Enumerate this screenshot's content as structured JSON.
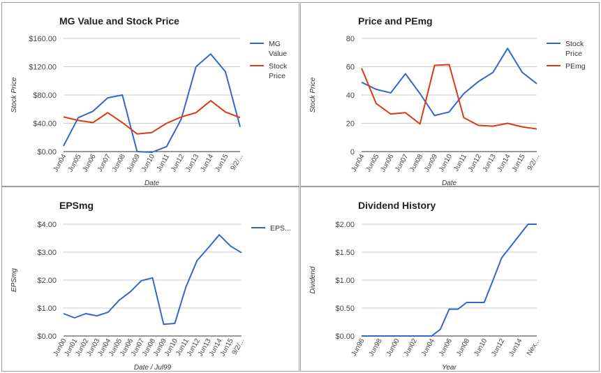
{
  "chart_data": [
    {
      "type": "line",
      "title": "MG Value and Stock Price",
      "xlabel": "Date",
      "ylabel": "Stock Price",
      "ylim": [
        0,
        160
      ],
      "yticks": [
        "$0.00",
        "$40.00",
        "$80.00",
        "$120.00",
        "$160.00"
      ],
      "categories": [
        "Jun04",
        "Jun05",
        "Jun06",
        "Jun07",
        "Jun08",
        "Jun09",
        "Jun10",
        "Jun11",
        "Jun12",
        "Jun13",
        "Jun14",
        "Jun15",
        "9/2/..."
      ],
      "grid": true,
      "legend": "right",
      "series": [
        {
          "name": "MG Value",
          "color": "#3366cc",
          "values": [
            8,
            48,
            57,
            76,
            80,
            0,
            -1,
            7,
            46,
            120,
            138,
            113,
            35
          ]
        },
        {
          "name": "Stock Price",
          "color": "#dc3912",
          "values": [
            49,
            44,
            41,
            55,
            41,
            25,
            27,
            40,
            49,
            55,
            72,
            56,
            48
          ]
        }
      ]
    },
    {
      "type": "line",
      "title": "Price and PEmg",
      "xlabel": "Date",
      "ylabel": "Stock Price",
      "ylim": [
        0,
        80
      ],
      "yticks": [
        "0",
        "20",
        "40",
        "60",
        "80"
      ],
      "categories": [
        "Jun04",
        "Jun05",
        "Jun06",
        "Jun07",
        "Jun08",
        "Jun09",
        "Jun10",
        "Jun11",
        "Jun12",
        "Jun13",
        "Jun14",
        "Jun15",
        "9/2/..."
      ],
      "grid": true,
      "legend": "right",
      "series": [
        {
          "name": "Stock Price",
          "color": "#3366cc",
          "values": [
            49,
            44,
            41.5,
            55,
            41,
            25.5,
            28,
            41,
            49.5,
            56,
            73,
            56,
            48
          ]
        },
        {
          "name": "PEmg",
          "color": "#dc3912",
          "values": [
            59,
            34,
            26.5,
            27.5,
            19.5,
            61,
            61.5,
            24,
            18.5,
            18,
            20,
            17.5,
            16
          ]
        }
      ]
    },
    {
      "type": "line",
      "title": "EPSmg",
      "xlabel": "Date / Jul99",
      "ylabel": "EPSmg",
      "ylim": [
        0,
        4
      ],
      "yticks": [
        "$0.00",
        "$1.00",
        "$2.00",
        "$3.00",
        "$4.00"
      ],
      "categories": [
        "Jun00",
        "Jun01",
        "Jun02",
        "Jun03",
        "Jun04",
        "Jun05",
        "Jun06",
        "Jun07",
        "Jun08",
        "Jun09",
        "Jun10",
        "Jun11",
        "Jun12",
        "Jun13",
        "Jun14",
        "Jun15",
        "9/2/..."
      ],
      "grid": true,
      "legend": "right",
      "series": [
        {
          "name": "EPS...",
          "color": "#3366cc",
          "values": [
            0.8,
            0.65,
            0.8,
            0.72,
            0.85,
            1.28,
            1.58,
            1.98,
            2.08,
            0.42,
            0.45,
            1.75,
            2.7,
            3.15,
            3.62,
            3.22,
            2.98
          ]
        }
      ]
    },
    {
      "type": "line",
      "title": "Dividend History",
      "xlabel": "Year",
      "ylabel": "Dividend",
      "ylim": [
        0,
        2
      ],
      "yticks": [
        "$0.00",
        "$0.50",
        "$1.00",
        "$1.50",
        "$2.00"
      ],
      "categories": [
        "Jun96",
        "Jun97",
        "Jun98",
        "Jun99",
        "Jun00",
        "Jun01",
        "Jun02",
        "Jun03",
        "Jun04",
        "Jun05",
        "Jun06",
        "Jun07",
        "Jun08",
        "Jun09",
        "Jun10",
        "Jun11",
        "Jun12",
        "Jun13",
        "Jun14",
        "Jun15",
        "Nex..."
      ],
      "tick_every": 2,
      "grid": true,
      "legend": "none",
      "series": [
        {
          "name": "",
          "color": "#3366cc",
          "values": [
            0,
            0,
            0,
            0,
            0,
            0,
            0,
            0,
            0,
            0.12,
            0.48,
            0.48,
            0.6,
            0.6,
            0.6,
            1.0,
            1.4,
            1.6,
            1.8,
            2.0,
            2.0
          ]
        }
      ]
    }
  ]
}
